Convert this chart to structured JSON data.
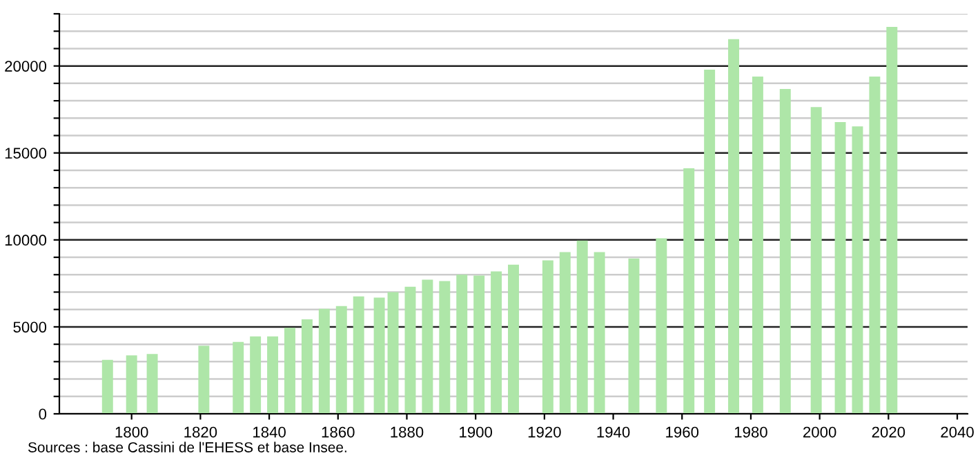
{
  "chart_data": {
    "type": "bar",
    "x": [
      1793,
      1800,
      1806,
      1821,
      1831,
      1836,
      1841,
      1846,
      1851,
      1856,
      1861,
      1866,
      1872,
      1876,
      1881,
      1886,
      1891,
      1896,
      1901,
      1906,
      1911,
      1921,
      1926,
      1931,
      1936,
      1946,
      1954,
      1962,
      1968,
      1975,
      1982,
      1990,
      1999,
      2006,
      2011,
      2016,
      2021
    ],
    "values": [
      3100,
      3360,
      3440,
      3920,
      4130,
      4450,
      4450,
      4950,
      5430,
      6040,
      6200,
      6750,
      6680,
      7000,
      7310,
      7710,
      7630,
      8000,
      7950,
      8190,
      8580,
      8820,
      9300,
      9960,
      9300,
      8930,
      10090,
      14120,
      19790,
      21540,
      19390,
      18680,
      17640,
      16770,
      16530,
      19390,
      22250
    ],
    "color": "#aee6a8",
    "xlim": [
      1779,
      2043
    ],
    "xticks": [
      1800,
      1820,
      1840,
      1860,
      1880,
      1900,
      1920,
      1940,
      1960,
      1980,
      2000,
      2020,
      2040
    ],
    "ylim": [
      0,
      23000
    ],
    "yticks": [
      0,
      {
        "value": 1000,
        "label": null
      },
      {
        "value": 2000,
        "label": null
      },
      {
        "value": 3000,
        "label": null
      },
      {
        "value": 4000,
        "label": null
      },
      5000,
      {
        "value": 6000,
        "label": null
      },
      {
        "value": 7000,
        "label": null
      },
      {
        "value": 8000,
        "label": null
      },
      {
        "value": 9000,
        "label": null
      },
      10000,
      {
        "value": 11000,
        "label": null
      },
      {
        "value": 12000,
        "label": null
      },
      {
        "value": 13000,
        "label": null
      },
      {
        "value": 14000,
        "label": null
      },
      15000,
      {
        "value": 16000,
        "label": null
      },
      {
        "value": 17000,
        "label": null
      },
      {
        "value": 18000,
        "label": null
      },
      {
        "value": 19000,
        "label": null
      },
      20000,
      {
        "value": 21000,
        "label": null
      },
      {
        "value": 22000,
        "label": null
      },
      {
        "value": 23000,
        "label": null
      }
    ],
    "grid": "y",
    "annotations": [
      "Sources : base Cassini de l'EHESS et base Insee."
    ]
  }
}
